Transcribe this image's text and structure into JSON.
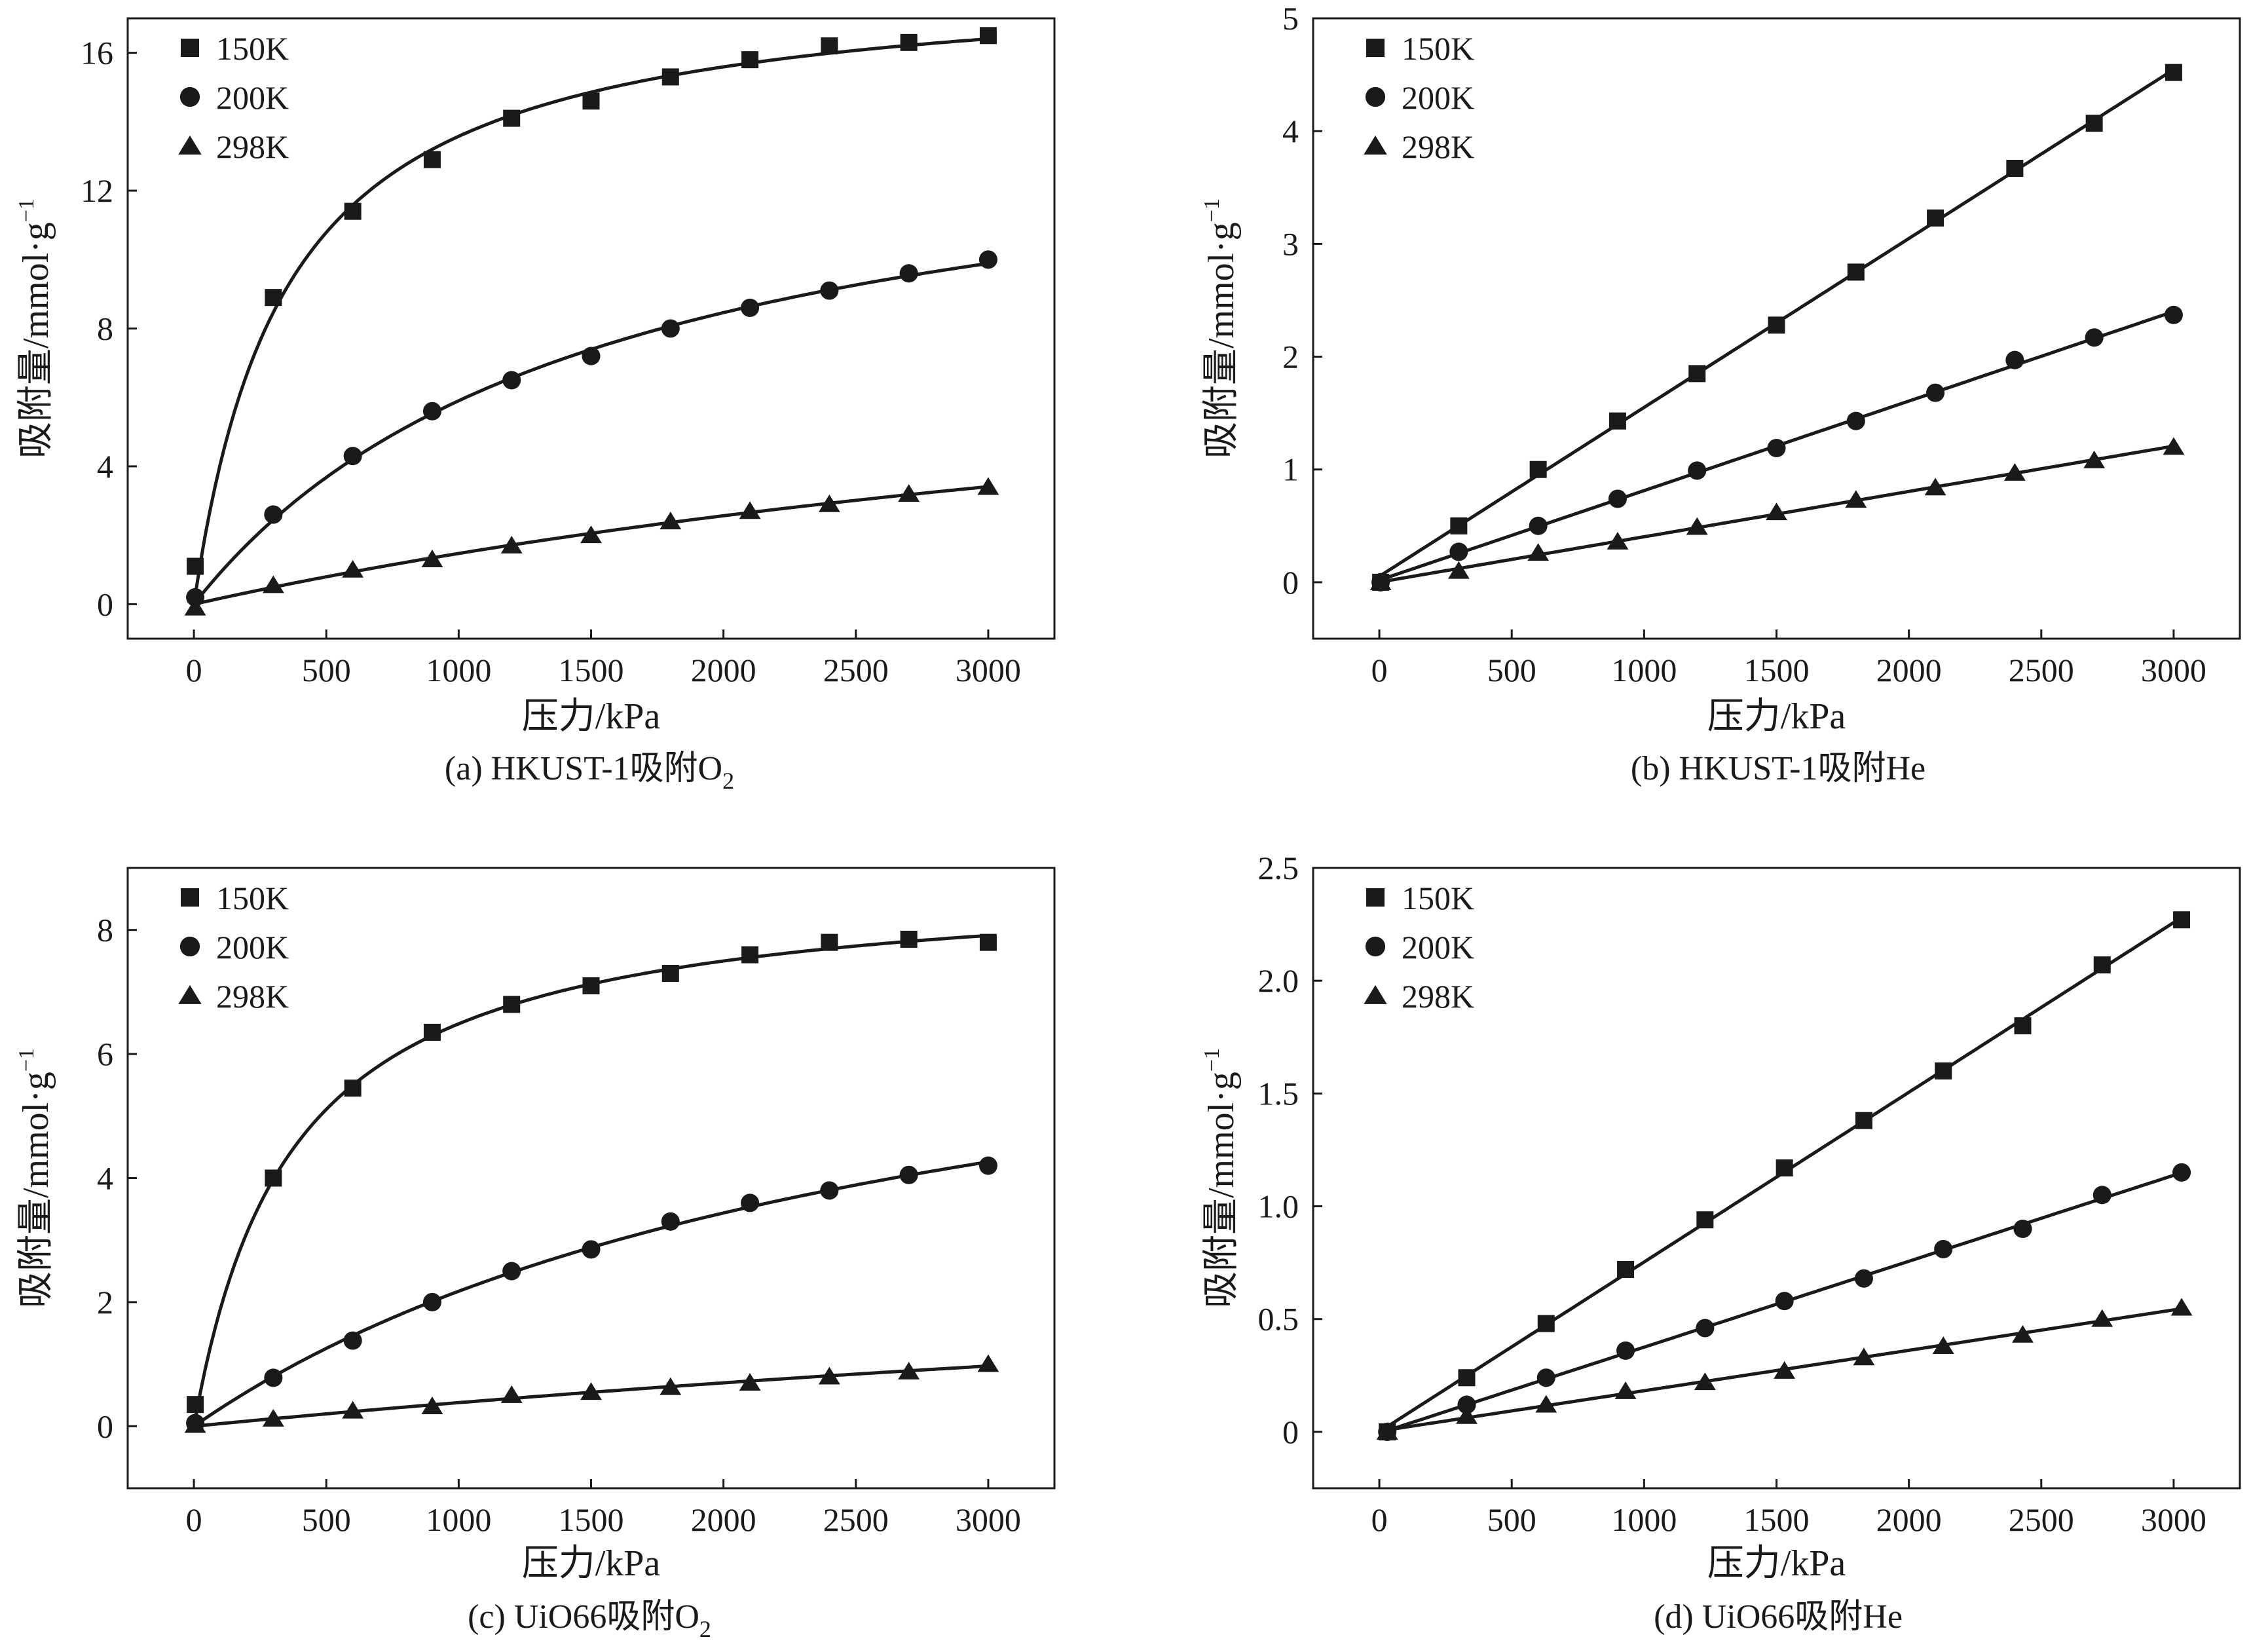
{
  "figure": {
    "panels": [
      {
        "caption": "(a) HKUST-1吸附O",
        "caption_sub": "2",
        "chart_data": {
          "type": "line",
          "xlabel": "压力/kPa",
          "ylabel": "吸附量/mmol·g",
          "ylabel_sup": "−1",
          "xlim": [
            -250,
            3250
          ],
          "ylim": [
            -1,
            17
          ],
          "xticks": [
            0,
            500,
            1000,
            1500,
            2000,
            2500,
            3000
          ],
          "yticks": [
            0,
            4,
            8,
            12,
            16
          ],
          "ytick_labels": [
            "0",
            "4",
            "8",
            "12",
            "16"
          ],
          "legend_position": "top-left",
          "fit": "langmuir",
          "series": [
            {
              "name": "150K",
              "marker": "square",
              "x": [
                5,
                300,
                600,
                900,
                1200,
                1500,
                1800,
                2100,
                2400,
                2700,
                3000
              ],
              "y": [
                1.1,
                8.9,
                11.4,
                12.9,
                14.1,
                14.6,
                15.3,
                15.8,
                16.2,
                16.3,
                16.5
              ]
            },
            {
              "name": "200K",
              "marker": "circle",
              "x": [
                5,
                300,
                600,
                900,
                1200,
                1500,
                1800,
                2100,
                2400,
                2700,
                3000
              ],
              "y": [
                0.2,
                2.6,
                4.3,
                5.6,
                6.5,
                7.2,
                8.0,
                8.6,
                9.1,
                9.6,
                10.0
              ]
            },
            {
              "name": "298K",
              "marker": "triangle",
              "x": [
                5,
                300,
                600,
                900,
                1200,
                1500,
                1800,
                2100,
                2400,
                2700,
                3000
              ],
              "y": [
                -0.1,
                0.55,
                1.0,
                1.3,
                1.7,
                2.0,
                2.4,
                2.7,
                2.9,
                3.2,
                3.4
              ]
            }
          ]
        }
      },
      {
        "caption": "(b) HKUST-1吸附He",
        "caption_sub": "",
        "chart_data": {
          "type": "line",
          "xlabel": "压力/kPa",
          "ylabel": "吸附量/mmol·g",
          "ylabel_sup": "−1",
          "xlim": [
            -250,
            3250
          ],
          "ylim": [
            -0.5,
            5
          ],
          "xticks": [
            0,
            500,
            1000,
            1500,
            2000,
            2500,
            3000
          ],
          "yticks": [
            0,
            1,
            2,
            3,
            4,
            5
          ],
          "ytick_labels": [
            "0",
            "1",
            "2",
            "3",
            "4",
            "5"
          ],
          "legend_position": "top-left",
          "fit": "linear",
          "series": [
            {
              "name": "150K",
              "marker": "square",
              "x": [
                5,
                300,
                600,
                900,
                1200,
                1500,
                1800,
                2100,
                2400,
                2700,
                3000
              ],
              "y": [
                0.0,
                0.5,
                1.0,
                1.43,
                1.85,
                2.28,
                2.75,
                3.23,
                3.67,
                4.07,
                4.52
              ]
            },
            {
              "name": "200K",
              "marker": "circle",
              "x": [
                5,
                300,
                600,
                900,
                1200,
                1500,
                1800,
                2100,
                2400,
                2700,
                3000
              ],
              "y": [
                0.0,
                0.27,
                0.5,
                0.74,
                0.99,
                1.19,
                1.43,
                1.68,
                1.97,
                2.17,
                2.37
              ]
            },
            {
              "name": "298K",
              "marker": "triangle",
              "x": [
                5,
                300,
                600,
                900,
                1200,
                1500,
                1800,
                2100,
                2400,
                2700,
                3000
              ],
              "y": [
                0.0,
                0.1,
                0.26,
                0.36,
                0.49,
                0.62,
                0.73,
                0.84,
                0.97,
                1.08,
                1.2
              ]
            }
          ]
        }
      },
      {
        "caption": "(c) UiO66吸附O",
        "caption_sub": "2",
        "chart_data": {
          "type": "line",
          "xlabel": "压力/kPa",
          "ylabel": "吸附量/mmol·g",
          "ylabel_sup": "−1",
          "xlim": [
            -250,
            3250
          ],
          "ylim": [
            -1,
            9
          ],
          "xticks": [
            0,
            500,
            1000,
            1500,
            2000,
            2500,
            3000
          ],
          "yticks": [
            0,
            2,
            4,
            6,
            8
          ],
          "ytick_labels": [
            "0",
            "2",
            "4",
            "6",
            "8"
          ],
          "legend_position": "top-left",
          "fit": "langmuir",
          "series": [
            {
              "name": "150K",
              "marker": "square",
              "x": [
                5,
                300,
                600,
                900,
                1200,
                1500,
                1800,
                2100,
                2400,
                2700,
                3000
              ],
              "y": [
                0.35,
                4.0,
                5.45,
                6.35,
                6.8,
                7.1,
                7.3,
                7.6,
                7.8,
                7.85,
                7.8
              ]
            },
            {
              "name": "200K",
              "marker": "circle",
              "x": [
                5,
                300,
                600,
                900,
                1200,
                1500,
                1800,
                2100,
                2400,
                2700,
                3000
              ],
              "y": [
                0.05,
                0.78,
                1.38,
                2.0,
                2.5,
                2.85,
                3.3,
                3.6,
                3.8,
                4.05,
                4.2
              ]
            },
            {
              "name": "298K",
              "marker": "triangle",
              "x": [
                5,
                300,
                600,
                900,
                1200,
                1500,
                1800,
                2100,
                2400,
                2700,
                3000
              ],
              "y": [
                0.02,
                0.12,
                0.25,
                0.32,
                0.5,
                0.55,
                0.63,
                0.7,
                0.8,
                0.88,
                1.0
              ]
            }
          ]
        }
      },
      {
        "caption": "(d) UiO66吸附He",
        "caption_sub": "",
        "chart_data": {
          "type": "line",
          "xlabel": "压力/kPa",
          "ylabel": "吸附量/mmol·g",
          "ylabel_sup": "−1",
          "xlim": [
            -250,
            3250
          ],
          "ylim": [
            -0.25,
            2.5
          ],
          "xticks": [
            0,
            500,
            1000,
            1500,
            2000,
            2500,
            3000
          ],
          "yticks": [
            0,
            0.5,
            1.0,
            1.5,
            2.0,
            2.5
          ],
          "ytick_labels": [
            "0",
            "0.5",
            "1.0",
            "1.5",
            "2.0",
            "2.5"
          ],
          "legend_position": "top-left",
          "fit": "linear",
          "series": [
            {
              "name": "150K",
              "marker": "square",
              "x": [
                30,
                330,
                630,
                930,
                1230,
                1530,
                1830,
                2130,
                2430,
                2730,
                3030
              ],
              "y": [
                0.0,
                0.24,
                0.48,
                0.72,
                0.94,
                1.17,
                1.38,
                1.6,
                1.8,
                2.07,
                2.27
              ]
            },
            {
              "name": "200K",
              "marker": "circle",
              "x": [
                30,
                330,
                630,
                930,
                1230,
                1530,
                1830,
                2130,
                2430,
                2730,
                3030
              ],
              "y": [
                0.0,
                0.12,
                0.24,
                0.36,
                0.46,
                0.58,
                0.68,
                0.81,
                0.9,
                1.05,
                1.15
              ]
            },
            {
              "name": "298K",
              "marker": "triangle",
              "x": [
                30,
                330,
                630,
                930,
                1230,
                1530,
                1830,
                2130,
                2430,
                2730,
                3030
              ],
              "y": [
                0.0,
                0.07,
                0.12,
                0.18,
                0.22,
                0.27,
                0.33,
                0.38,
                0.43,
                0.5,
                0.55
              ]
            }
          ]
        }
      }
    ]
  }
}
